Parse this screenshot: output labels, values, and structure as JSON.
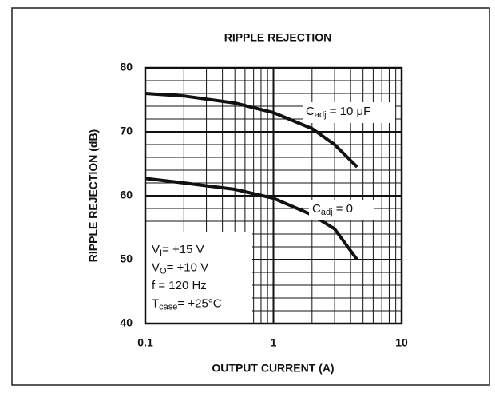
{
  "chart_data": {
    "type": "line",
    "title": "RIPPLE REJECTION",
    "x_label": "OUTPUT CURRENT (A)",
    "y_label": "RIPPLE REJECTION (dB)",
    "log_x": true,
    "grid": true,
    "xlim": [
      0.1,
      10
    ],
    "xticks": [
      0.1,
      1,
      10
    ],
    "xminorticks": [
      0.2,
      0.3,
      0.4,
      0.5,
      0.6,
      0.7,
      0.8,
      0.9,
      2,
      3,
      4,
      5,
      6,
      7,
      8,
      9
    ],
    "ylim": [
      40,
      80
    ],
    "yticks": [
      40,
      50,
      60,
      70,
      80
    ],
    "yminorticks": [
      42,
      44,
      46,
      48,
      52,
      54,
      56,
      58,
      62,
      64,
      66,
      68,
      72,
      74,
      76,
      78
    ],
    "series": [
      {
        "label": {
          "main": "C",
          "sub": "adj",
          "rest": " = 10 μF"
        },
        "color": "#111111",
        "x": [
          0.1,
          0.2,
          0.5,
          1,
          2,
          3,
          4.5
        ],
        "values": [
          76,
          75.6,
          74.5,
          73,
          70.5,
          68,
          64.5
        ]
      },
      {
        "label": {
          "main": "C",
          "sub": "adj",
          "rest": " = 0"
        },
        "color": "#111111",
        "x": [
          0.1,
          0.2,
          0.5,
          1,
          2,
          3,
          4.5
        ],
        "values": [
          62.7,
          62,
          61,
          59.6,
          57,
          54.8,
          50
        ]
      }
    ],
    "conditions": [
      {
        "main": "V",
        "sub": "I",
        "rest": "= +15 V"
      },
      {
        "main": "V",
        "sub": "O",
        "rest": "= +10 V"
      },
      {
        "main": "f = 120 Hz",
        "sub": "",
        "rest": ""
      },
      {
        "main": "T",
        "sub": "case",
        "rest": "= +25°C"
      }
    ]
  }
}
